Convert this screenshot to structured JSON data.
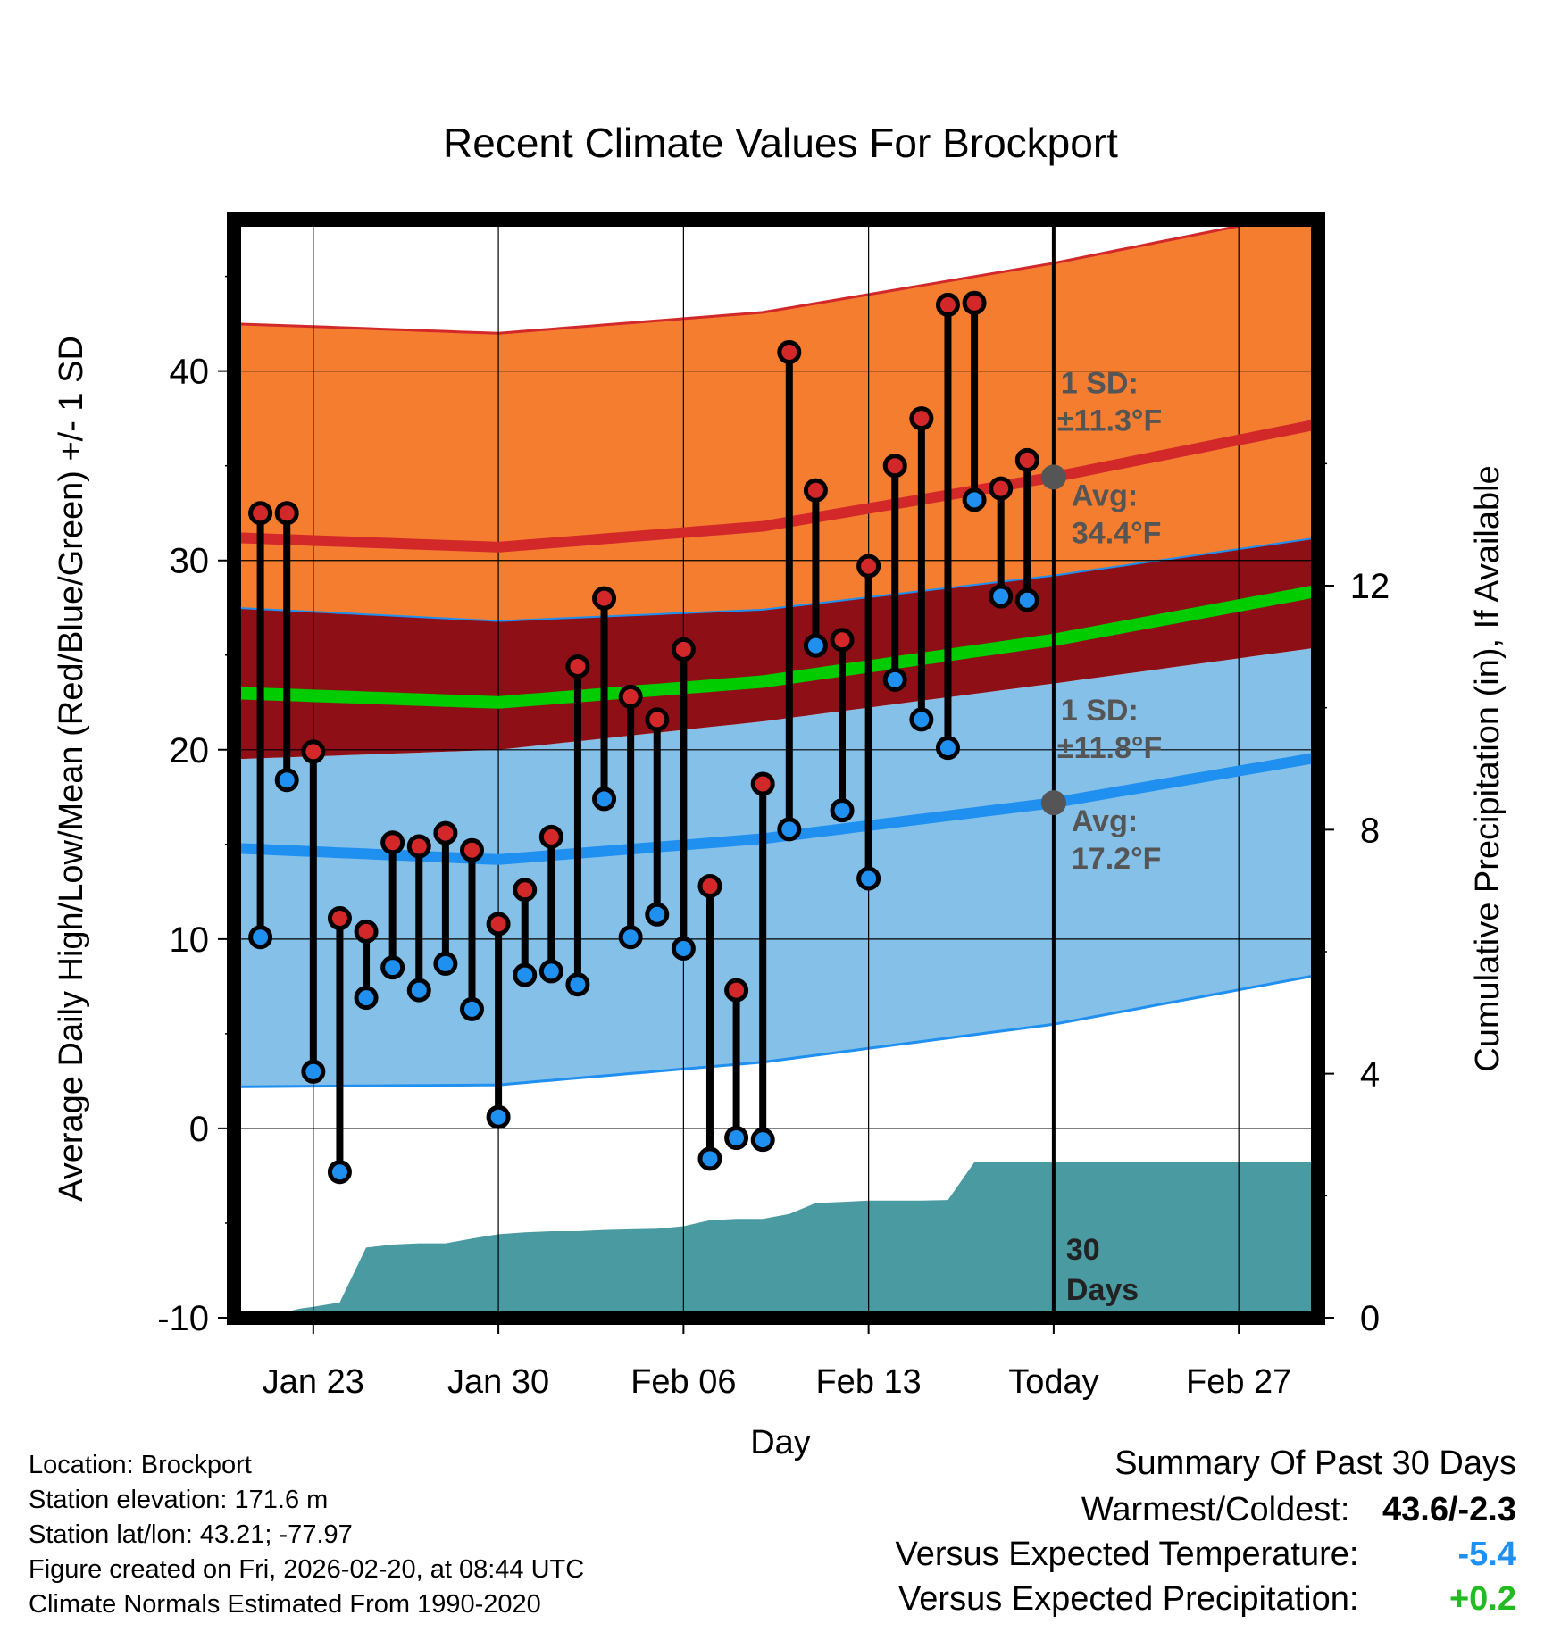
{
  "chart_data": {
    "type": "line",
    "title": "Recent Climate Values For Brockport",
    "xlabel": "Day",
    "ylabel_left": "Average Daily High/Low/Mean (Red/Blue/Green) +/- 1 SD",
    "ylabel_right": "Cumulative Precipitation (in), If Available",
    "x_range_days": [
      0,
      41
    ],
    "ylim_left": [
      -10,
      48
    ],
    "ylim_right": [
      0,
      18
    ],
    "left_ticks": [
      "-10",
      "0",
      "10",
      "20",
      "30",
      "40"
    ],
    "left_tick_values": [
      -10,
      0,
      10,
      20,
      30,
      40
    ],
    "right_ticks": [
      "0",
      "4",
      "8",
      "12"
    ],
    "right_tick_values": [
      0,
      4,
      8,
      12
    ],
    "x_ticks": [
      {
        "label": "Jan 23",
        "day": 3
      },
      {
        "label": "Jan 30",
        "day": 10
      },
      {
        "label": "Feb 06",
        "day": 17
      },
      {
        "label": "Feb 13",
        "day": 24
      },
      {
        "label": "Today",
        "day": 31
      },
      {
        "label": "Feb 27",
        "day": 38
      }
    ],
    "today_day": 31,
    "period_label_line1": "30",
    "period_label_line2": "Days",
    "normal_high": {
      "days": [
        0,
        10,
        20,
        31,
        41
      ],
      "mean": [
        31.2,
        30.7,
        31.8,
        34.4,
        37.2
      ],
      "upper": [
        42.5,
        42.0,
        43.1,
        45.7,
        48.5
      ],
      "lower": [
        27.5,
        26.8,
        27.4,
        29.2,
        31.2
      ]
    },
    "normal_low": {
      "days": [
        0,
        10,
        20,
        31,
        41
      ],
      "mean": [
        14.8,
        14.2,
        15.3,
        17.2,
        19.6
      ],
      "upper": [
        19.5,
        20.0,
        21.5,
        23.5,
        25.4
      ],
      "lower": [
        2.2,
        2.3,
        3.5,
        5.5,
        8.1
      ]
    },
    "normal_mean": {
      "days": [
        0,
        10,
        20,
        31,
        41
      ],
      "mean": [
        23.0,
        22.5,
        23.6,
        25.8,
        28.4
      ]
    },
    "high_annotation": {
      "sd_label": "1 SD:",
      "sd_value": "±11.3°F",
      "avg_label": "Avg:",
      "avg_value": "34.4°F",
      "avg": 34.4
    },
    "low_annotation": {
      "sd_label": "1 SD:",
      "sd_value": "±11.8°F",
      "avg_label": "Avg:",
      "avg_value": "17.2°F",
      "avg": 17.2
    },
    "observed": {
      "days": [
        1,
        2,
        3,
        4,
        5,
        6,
        7,
        8,
        9,
        10,
        11,
        12,
        13,
        14,
        15,
        16,
        17,
        18,
        19,
        20,
        21,
        22,
        23,
        24,
        25,
        26,
        27,
        28,
        29,
        30
      ],
      "highs": [
        32.5,
        32.5,
        19.9,
        11.1,
        10.4,
        15.1,
        14.9,
        15.6,
        14.7,
        10.8,
        12.6,
        15.4,
        24.4,
        28.0,
        22.8,
        21.6,
        25.3,
        12.8,
        7.3,
        18.2,
        41.0,
        33.7,
        25.8,
        29.7,
        35.0,
        37.5,
        43.5,
        43.6,
        33.8,
        35.3
      ],
      "lows": [
        10.1,
        18.4,
        3.0,
        -2.3,
        6.9,
        8.5,
        7.3,
        8.7,
        6.3,
        0.6,
        8.1,
        8.3,
        7.6,
        17.4,
        10.1,
        11.3,
        9.5,
        -1.6,
        -0.5,
        -0.6,
        15.8,
        25.5,
        16.8,
        13.2,
        23.7,
        21.6,
        20.1,
        33.2,
        28.1,
        27.9
      ]
    },
    "precip": {
      "days": [
        1,
        2,
        2.5,
        3,
        4,
        5,
        6,
        7,
        8,
        9,
        10,
        11,
        12,
        13,
        14,
        15,
        16,
        17,
        18,
        19,
        20,
        21,
        22,
        23,
        24,
        25,
        26,
        27,
        28,
        29,
        30,
        31,
        41
      ],
      "cumulative": [
        0,
        0.1,
        0.15,
        0.18,
        0.25,
        1.15,
        1.2,
        1.22,
        1.22,
        1.3,
        1.37,
        1.4,
        1.42,
        1.42,
        1.44,
        1.45,
        1.46,
        1.5,
        1.6,
        1.62,
        1.62,
        1.7,
        1.88,
        1.9,
        1.92,
        1.92,
        1.92,
        1.93,
        2.55,
        2.55,
        2.55,
        2.55,
        2.55
      ]
    },
    "colors": {
      "high_band": "#f47d30",
      "overlap_band": "#8e1016",
      "low_band": "#84c0e8",
      "high_line": "#d2282a",
      "low_line": "#1f8ff0",
      "mean_line": "#00cc00",
      "high_marker": "#d2282a",
      "low_marker": "#1f8ff0",
      "precip_fill": "#4a9aa1",
      "annotation_text": "#555555",
      "today_marker": "#555555"
    }
  },
  "info": {
    "location": "Location: Brockport",
    "elevation": "Station elevation: 171.6 m",
    "latlon": "Station lat/lon: 43.21; -77.97",
    "created": "Figure created on Fri, 2026-02-20, at 08:44 UTC",
    "normals": "Climate Normals Estimated From 1990-2020"
  },
  "summary": {
    "heading": "Summary Of Past 30 Days",
    "warmest_label": "Warmest/Coldest:",
    "warmest_value": "43.6/-2.3",
    "temp_label": "Versus Expected Temperature:",
    "temp_value": "-5.4",
    "temp_color": "#1f8ff0",
    "precip_label": "Versus Expected Precipitation:",
    "precip_value": "+0.2",
    "precip_color": "#22bb22"
  }
}
